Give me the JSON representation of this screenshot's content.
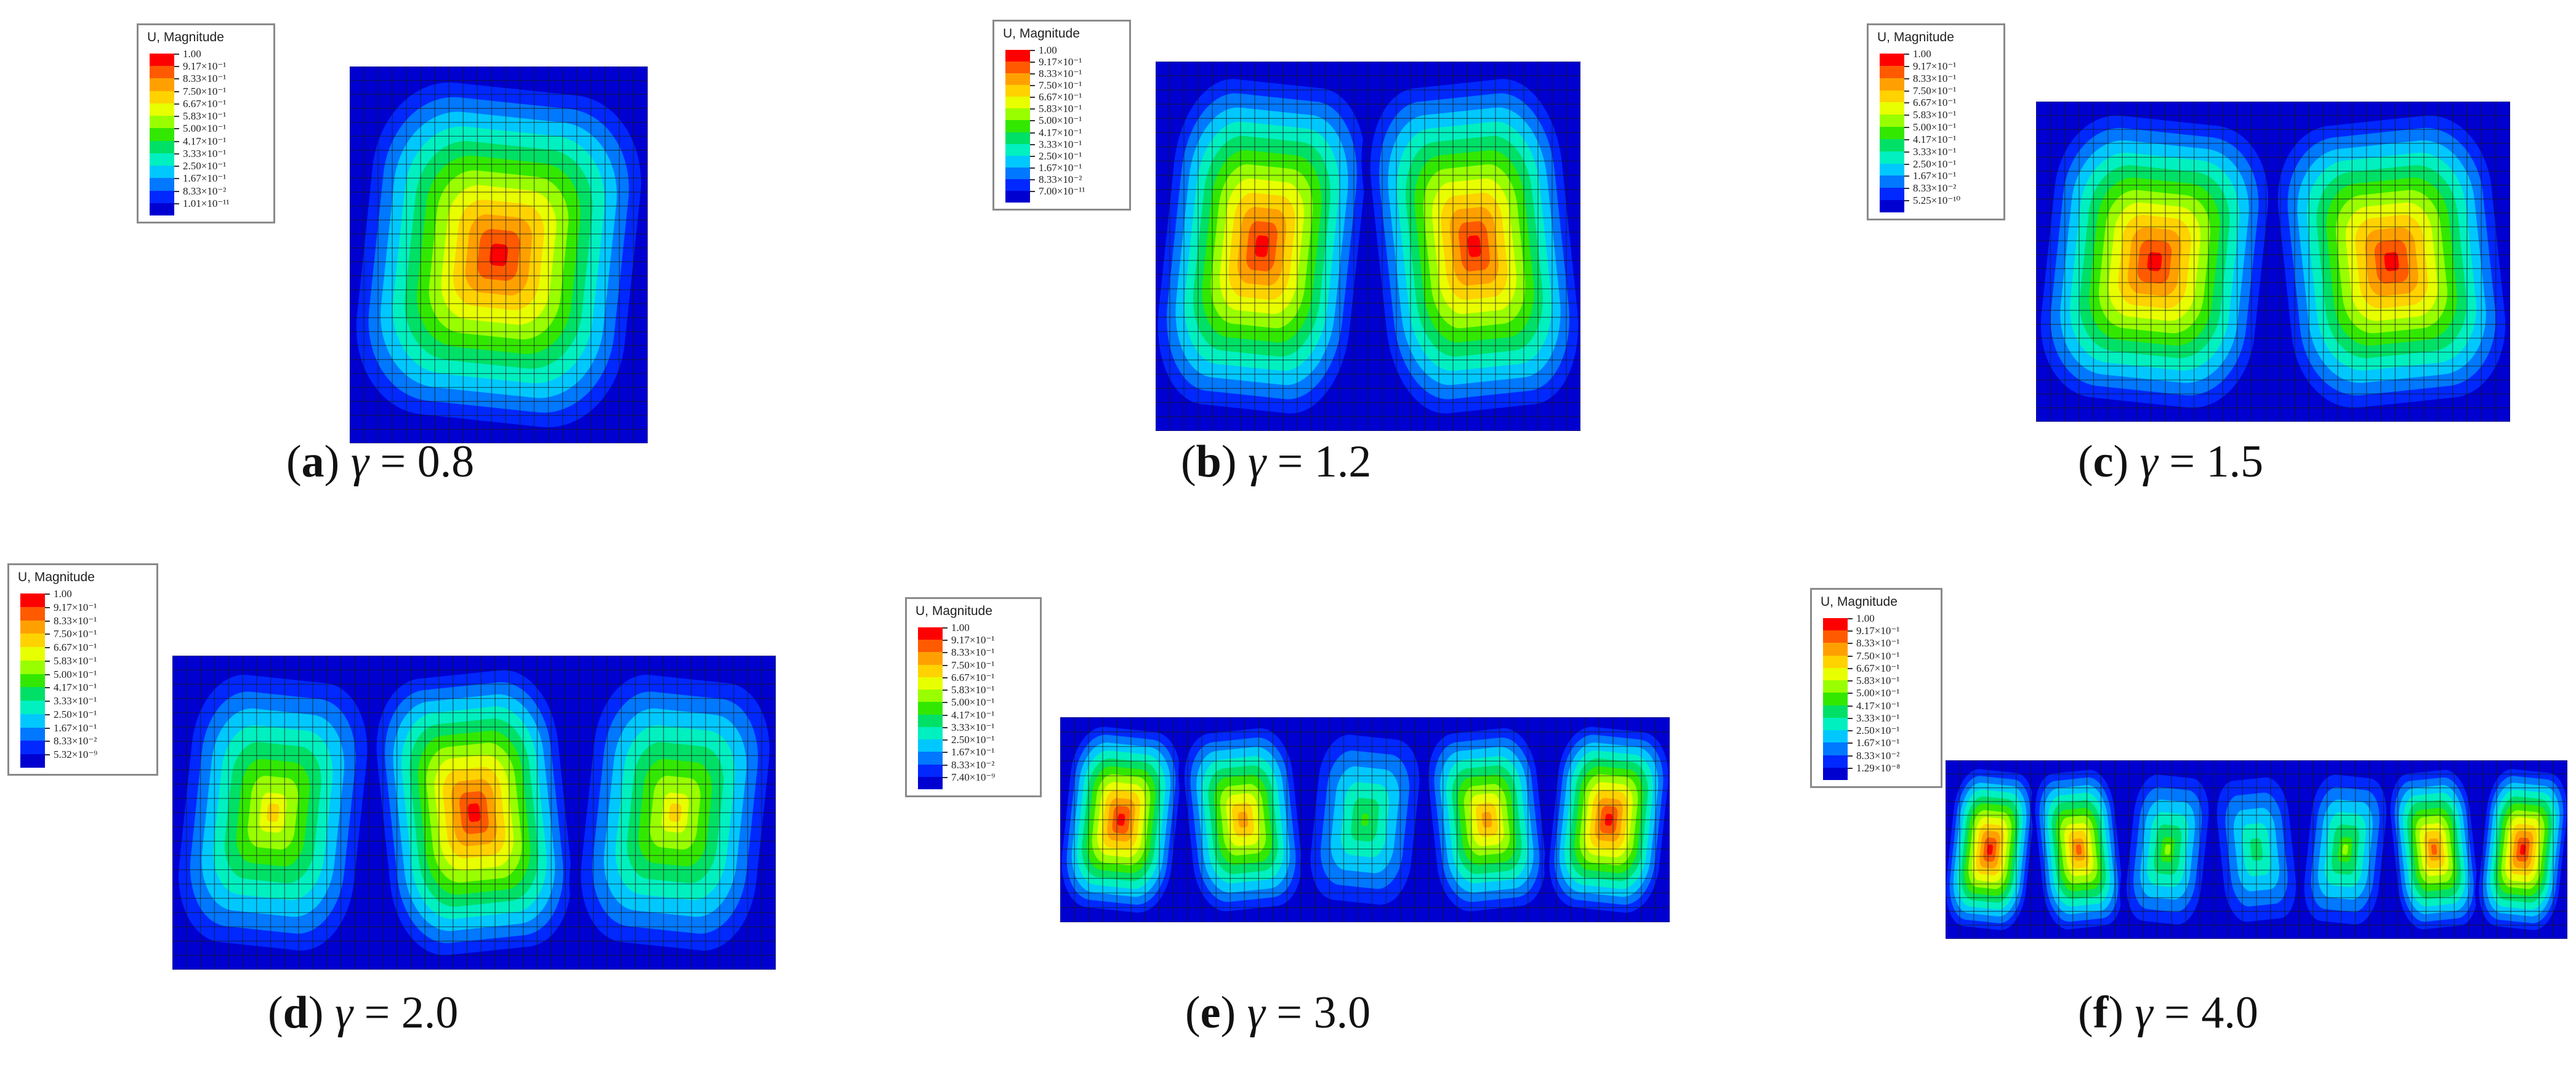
{
  "legend": {
    "title": "U, Magnitude",
    "colors": [
      "#ff0000",
      "#ff5a00",
      "#ffa000",
      "#ffd200",
      "#e8ff00",
      "#99ff00",
      "#33e800",
      "#00e066",
      "#00f0c0",
      "#00c8ff",
      "#0078ff",
      "#0028ff",
      "#0000d0"
    ]
  },
  "panels": [
    {
      "id": "a",
      "letter": "a",
      "gamma_value": "0.8",
      "legend_labels": [
        "1.00",
        "9.17×10⁻¹",
        "8.33×10⁻¹",
        "7.50×10⁻¹",
        "6.67×10⁻¹",
        "5.83×10⁻¹",
        "5.00×10⁻¹",
        "4.17×10⁻¹",
        "3.33×10⁻¹",
        "2.50×10⁻¹",
        "1.67×10⁻¹",
        "8.33×10⁻²",
        "1.01×10⁻¹¹"
      ],
      "mode_count": 1,
      "peak_levels": [
        1.0
      ]
    },
    {
      "id": "b",
      "letter": "b",
      "gamma_value": "1.2",
      "legend_labels": [
        "1.00",
        "9.17×10⁻¹",
        "8.33×10⁻¹",
        "7.50×10⁻¹",
        "6.67×10⁻¹",
        "5.83×10⁻¹",
        "5.00×10⁻¹",
        "4.17×10⁻¹",
        "3.33×10⁻¹",
        "2.50×10⁻¹",
        "1.67×10⁻¹",
        "8.33×10⁻²",
        "7.00×10⁻¹¹"
      ],
      "mode_count": 2,
      "peak_levels": [
        1.0,
        1.0
      ]
    },
    {
      "id": "c",
      "letter": "c",
      "gamma_value": "1.5",
      "legend_labels": [
        "1.00",
        "9.17×10⁻¹",
        "8.33×10⁻¹",
        "7.50×10⁻¹",
        "6.67×10⁻¹",
        "5.83×10⁻¹",
        "5.00×10⁻¹",
        "4.17×10⁻¹",
        "3.33×10⁻¹",
        "2.50×10⁻¹",
        "1.67×10⁻¹",
        "8.33×10⁻²",
        "5.25×10⁻¹⁰"
      ],
      "mode_count": 2,
      "peak_levels": [
        1.0,
        1.0
      ]
    },
    {
      "id": "d",
      "letter": "d",
      "gamma_value": "2.0",
      "legend_labels": [
        "1.00",
        "9.17×10⁻¹",
        "8.33×10⁻¹",
        "7.50×10⁻¹",
        "6.67×10⁻¹",
        "5.83×10⁻¹",
        "5.00×10⁻¹",
        "4.17×10⁻¹",
        "3.33×10⁻¹",
        "2.50×10⁻¹",
        "1.67×10⁻¹",
        "8.33×10⁻²",
        "5.32×10⁻⁹"
      ],
      "mode_count": 3,
      "peak_levels": [
        0.72,
        1.0,
        0.72
      ]
    },
    {
      "id": "e",
      "letter": "e",
      "gamma_value": "3.0",
      "legend_labels": [
        "1.00",
        "9.17×10⁻¹",
        "8.33×10⁻¹",
        "7.50×10⁻¹",
        "6.67×10⁻¹",
        "5.83×10⁻¹",
        "5.00×10⁻¹",
        "4.17×10⁻¹",
        "3.33×10⁻¹",
        "2.50×10⁻¹",
        "1.67×10⁻¹",
        "8.33×10⁻²",
        "7.40×10⁻⁹"
      ],
      "mode_count": 5,
      "peak_levels": [
        1.0,
        0.85,
        0.5,
        0.85,
        1.0
      ]
    },
    {
      "id": "f",
      "letter": "f",
      "gamma_value": "4.0",
      "legend_labels": [
        "1.00",
        "9.17×10⁻¹",
        "8.33×10⁻¹",
        "7.50×10⁻¹",
        "6.67×10⁻¹",
        "5.83×10⁻¹",
        "5.00×10⁻¹",
        "4.17×10⁻¹",
        "3.33×10⁻¹",
        "2.50×10⁻¹",
        "1.67×10⁻¹",
        "8.33×10⁻²",
        "1.29×10⁻⁸"
      ],
      "mode_count": 7,
      "peak_levels": [
        1.0,
        0.9,
        0.55,
        0.45,
        0.55,
        0.9,
        1.0
      ]
    }
  ]
}
